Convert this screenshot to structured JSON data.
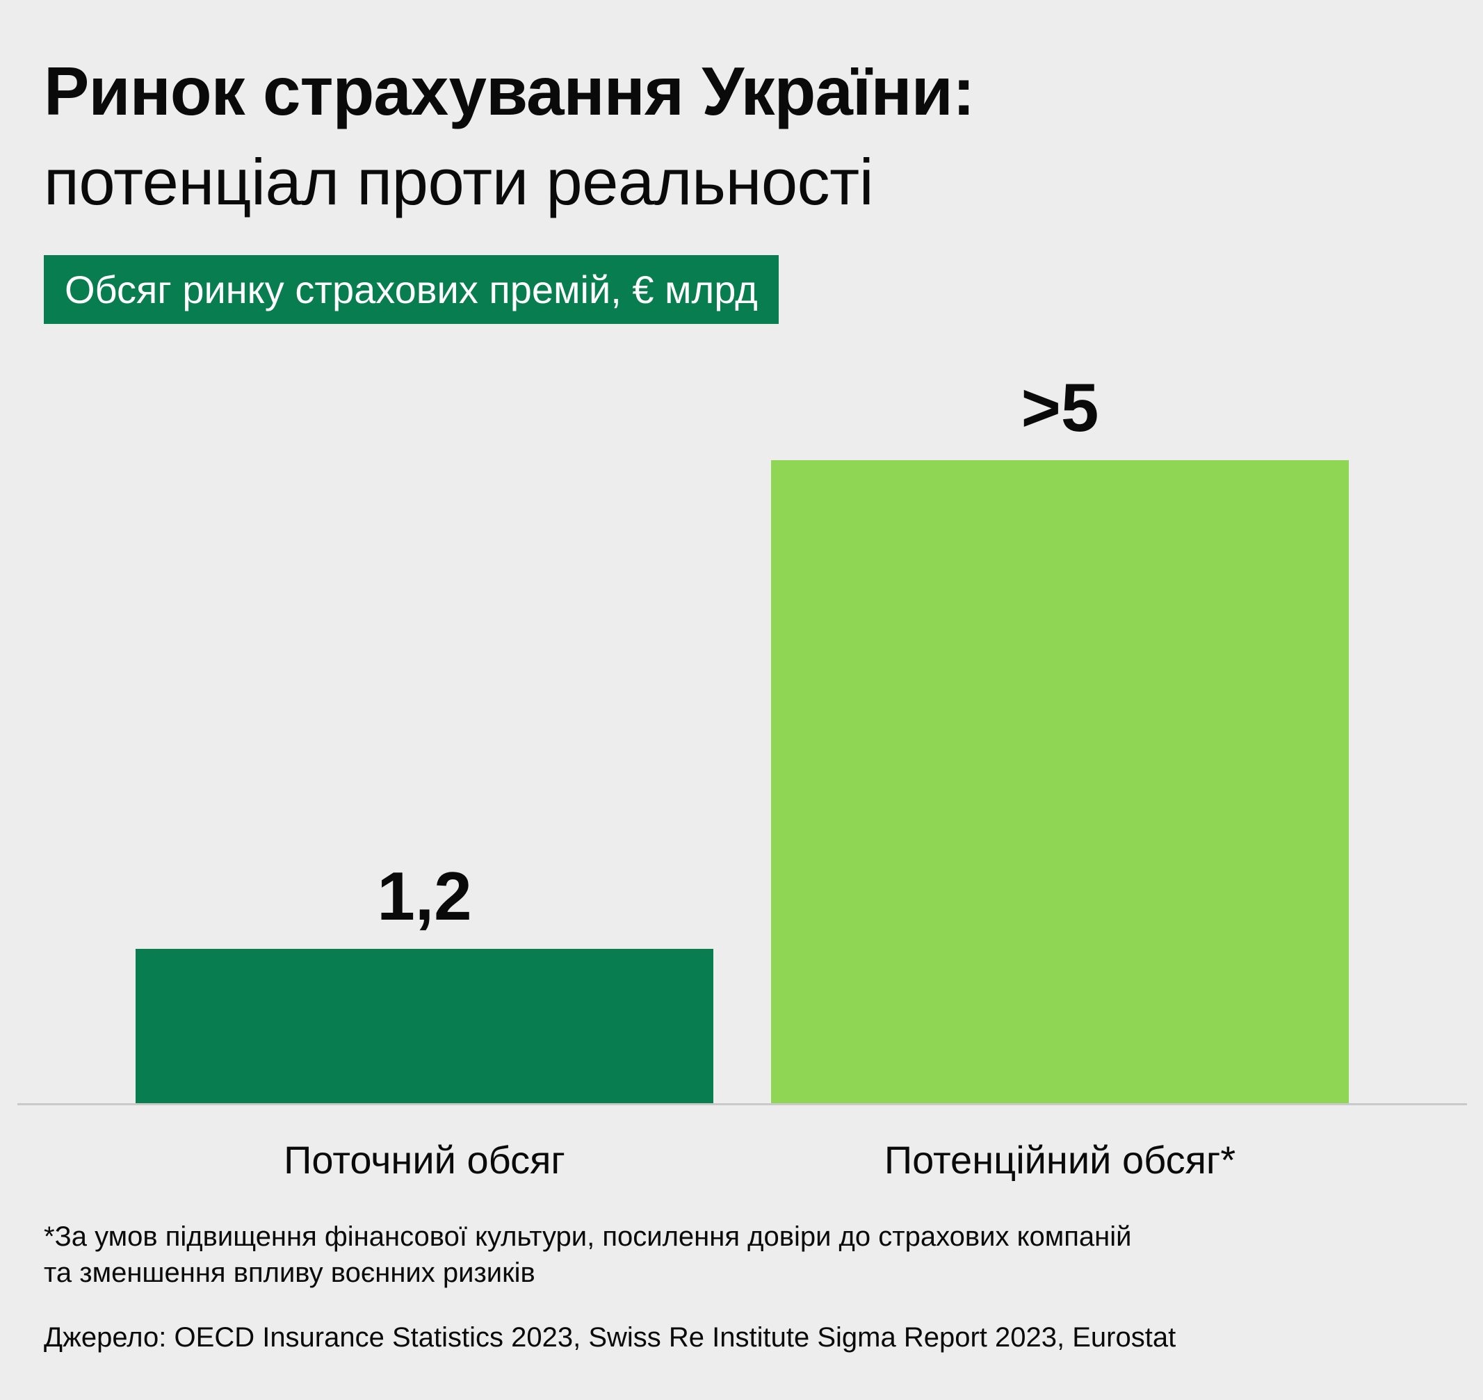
{
  "chart_data": {
    "type": "bar",
    "title": "Ринок страхування України:",
    "subtitle": "потенціал проти реальності",
    "ylabel": "Обсяг ринку страхових премій, € млрд",
    "categories": [
      "Поточний обсяг",
      "Потенційний обсяг*"
    ],
    "values": [
      1.2,
      5
    ],
    "value_labels": [
      "1,2",
      ">5"
    ],
    "colors": [
      "#087d4f",
      "#8fd654"
    ],
    "ylim": [
      0,
      5
    ],
    "grid": false,
    "legend": "none"
  },
  "footnote": {
    "line1": "*За умов підвищення фінансової культури, посилення довіри до страхових компаній",
    "line2": "та зменшення впливу воєнних ризиків"
  },
  "source": "Джерело: OECD Insurance Statistics 2023, Swiss Re Institute Sigma Report 2023, Eurostat"
}
